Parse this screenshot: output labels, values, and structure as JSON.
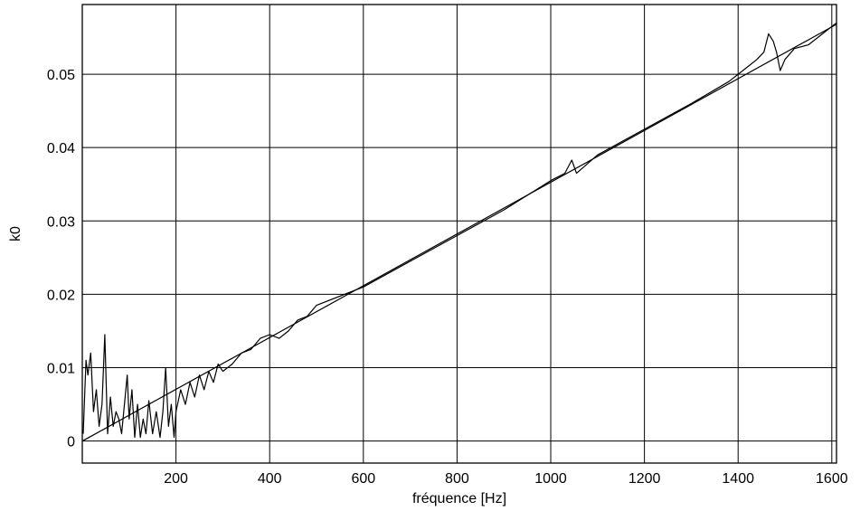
{
  "chart_data": {
    "type": "line",
    "title": "",
    "xlabel": "fréquence [Hz]",
    "ylabel": "k0",
    "xlim": [
      0,
      1610
    ],
    "ylim": [
      -0.003,
      0.0595
    ],
    "grid": true,
    "x_ticks": [
      200,
      400,
      600,
      800,
      1000,
      1200,
      1400,
      1600
    ],
    "x_tick_labels": [
      "200",
      "400",
      "600",
      "800",
      "1000",
      "1200",
      "1400",
      "1600"
    ],
    "y_ticks": [
      0,
      0.01,
      0.02,
      0.03,
      0.04,
      0.05
    ],
    "y_tick_labels": [
      "0",
      "0.01",
      "0.02",
      "0.03",
      "0.04",
      "0.05"
    ],
    "series": [
      {
        "style": "measured",
        "color": "#000000",
        "x": [
          2,
          8,
          12,
          18,
          24,
          30,
          36,
          42,
          48,
          54,
          60,
          66,
          72,
          78,
          84,
          90,
          96,
          100,
          106,
          112,
          118,
          124,
          130,
          136,
          142,
          150,
          158,
          166,
          172,
          178,
          184,
          190,
          196,
          200,
          210,
          220,
          230,
          240,
          250,
          260,
          270,
          280,
          290,
          300,
          320,
          340,
          360,
          380,
          400,
          420,
          440,
          460,
          480,
          500,
          600,
          700,
          800,
          900,
          1000,
          1030,
          1045,
          1055,
          1100,
          1200,
          1300,
          1380,
          1420,
          1440,
          1455,
          1465,
          1475,
          1482,
          1490,
          1500,
          1520,
          1550,
          1580,
          1600,
          1610
        ],
        "y": [
          0.001,
          0.011,
          0.009,
          0.012,
          0.004,
          0.007,
          0.002,
          0.005,
          0.0145,
          0.001,
          0.006,
          0.002,
          0.004,
          0.003,
          0.001,
          0.005,
          0.009,
          0.003,
          0.007,
          0.0005,
          0.005,
          0.0005,
          0.003,
          0.001,
          0.0055,
          0.001,
          0.004,
          0.0005,
          0.004,
          0.01,
          0.002,
          0.005,
          0.0005,
          0.004,
          0.007,
          0.005,
          0.008,
          0.006,
          0.009,
          0.007,
          0.0095,
          0.008,
          0.0105,
          0.0095,
          0.0105,
          0.012,
          0.0125,
          0.014,
          0.0145,
          0.014,
          0.015,
          0.0165,
          0.017,
          0.0185,
          0.021,
          0.0245,
          0.028,
          0.0315,
          0.0355,
          0.0365,
          0.0383,
          0.0365,
          0.039,
          0.0425,
          0.046,
          0.049,
          0.051,
          0.052,
          0.053,
          0.0555,
          0.0545,
          0.053,
          0.0505,
          0.052,
          0.0535,
          0.054,
          0.0555,
          0.0565,
          0.057
        ]
      },
      {
        "style": "fit",
        "color": "#000000",
        "x": [
          0,
          1610
        ],
        "y": [
          0.0,
          0.0568
        ]
      }
    ]
  }
}
